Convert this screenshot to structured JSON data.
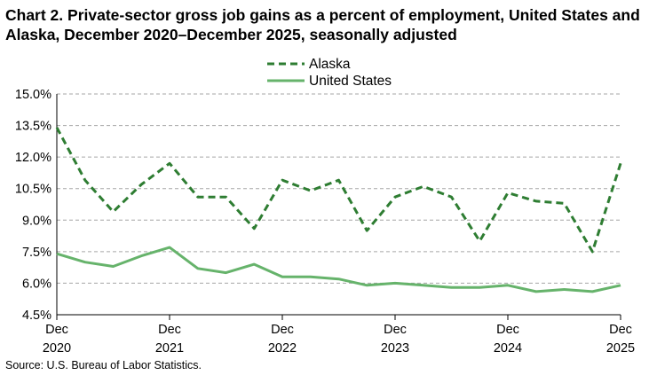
{
  "title": "Chart 2. Private-sector gross job gains as a percent of employment, United States and Alaska, December 2020–December 2025, seasonally adjusted",
  "source": "Source: U.S. Bureau of Labor Statistics.",
  "colors": {
    "alaska": "#2e7d32",
    "united_states": "#66b36b",
    "grid": "#a6a6a6",
    "axis": "#000000"
  },
  "chart_data": {
    "type": "line",
    "title": "Chart 2. Private-sector gross job gains as a percent of employment, United States and Alaska, December 2020–December 2025, seasonally adjusted",
    "xlabel": "",
    "ylabel": "",
    "ylim": [
      4.5,
      15.0
    ],
    "yticks": [
      4.5,
      6.0,
      7.5,
      9.0,
      10.5,
      12.0,
      13.5,
      15.0
    ],
    "ytick_labels": [
      "4.5%",
      "6.0%",
      "7.5%",
      "9.0%",
      "10.5%",
      "12.0%",
      "13.5%",
      "15.0%"
    ],
    "grid": "horizontal dashed",
    "legend": "top-center",
    "x": [
      "Dec 2020",
      "Mar 2021",
      "Jun 2021",
      "Sep 2021",
      "Dec 2021",
      "Mar 2022",
      "Jun 2022",
      "Sep 2022",
      "Dec 2022",
      "Mar 2023",
      "Jun 2023",
      "Sep 2023",
      "Dec 2023",
      "Mar 2024",
      "Jun 2024",
      "Sep 2024",
      "Dec 2024",
      "Mar 2025",
      "Jun 2025",
      "Sep 2025",
      "Dec 2025"
    ],
    "xtick_labels": [
      {
        "month": "Dec",
        "year": "2020",
        "index": 0
      },
      {
        "month": "Dec",
        "year": "2021",
        "index": 4
      },
      {
        "month": "Dec",
        "year": "2022",
        "index": 8
      },
      {
        "month": "Dec",
        "year": "2023",
        "index": 12
      },
      {
        "month": "Dec",
        "year": "2024",
        "index": 16
      },
      {
        "month": "Dec",
        "year": "2025",
        "index": 20
      }
    ],
    "series": [
      {
        "name": "Alaska",
        "style": "dashed",
        "values": [
          13.4,
          10.9,
          9.4,
          10.7,
          11.7,
          10.1,
          10.1,
          8.6,
          10.9,
          10.4,
          10.9,
          8.5,
          10.1,
          10.6,
          10.1,
          8.0,
          10.3,
          9.9,
          9.8,
          7.5,
          11.7
        ]
      },
      {
        "name": "United States",
        "style": "solid",
        "values": [
          7.4,
          7.0,
          6.8,
          7.3,
          7.7,
          6.7,
          6.5,
          6.9,
          6.3,
          6.3,
          6.2,
          5.9,
          6.0,
          5.9,
          5.8,
          5.8,
          5.9,
          5.6,
          5.7,
          5.6,
          5.9
        ]
      }
    ]
  }
}
